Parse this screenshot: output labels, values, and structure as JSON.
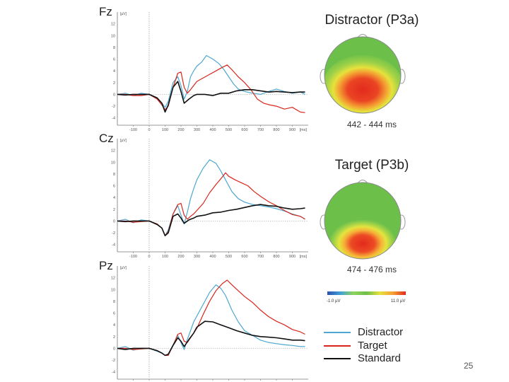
{
  "chart_data": [
    {
      "type": "line",
      "panel": "Fz",
      "ylabel": "[µV]",
      "xlabel": "[ms]",
      "xlim": [
        -200,
        1000
      ],
      "ylim": [
        -5,
        14
      ],
      "xticks": [
        -100,
        0,
        100,
        200,
        300,
        400,
        500,
        600,
        700,
        800,
        900
      ],
      "yticks": [
        -4,
        -2,
        0,
        2,
        4,
        6,
        8,
        10,
        12
      ],
      "series": [
        {
          "name": "Distractor",
          "x": [
            -200,
            -150,
            -100,
            -50,
            0,
            50,
            80,
            100,
            120,
            150,
            180,
            200,
            220,
            240,
            260,
            280,
            300,
            330,
            360,
            400,
            440,
            470,
            500,
            530,
            560,
            600,
            650,
            700,
            750,
            800,
            850,
            900,
            950,
            980
          ],
          "y": [
            0,
            0.2,
            -0.2,
            0.2,
            0,
            -0.6,
            -1.5,
            -2.2,
            -1.2,
            2.0,
            3.0,
            1.5,
            -0.8,
            0.5,
            3.0,
            4.0,
            4.8,
            5.5,
            6.6,
            6.0,
            5.2,
            4.2,
            3.0,
            1.8,
            0.9,
            0.5,
            0.2,
            0,
            0.5,
            0.9,
            0.5,
            0.2,
            0.4,
            0
          ]
        },
        {
          "name": "Target",
          "x": [
            -200,
            -150,
            -100,
            -50,
            0,
            50,
            80,
            100,
            120,
            150,
            180,
            200,
            220,
            240,
            260,
            280,
            300,
            340,
            380,
            420,
            460,
            490,
            520,
            560,
            600,
            640,
            680,
            720,
            760,
            800,
            850,
            900,
            950,
            980
          ],
          "y": [
            0,
            0,
            -0.2,
            -0.2,
            0,
            -0.8,
            -1.8,
            -2.6,
            -2.0,
            1.2,
            3.6,
            3.8,
            1.2,
            0.2,
            0.8,
            1.5,
            2.2,
            2.8,
            3.4,
            4.0,
            4.6,
            5.0,
            4.2,
            3.0,
            2.0,
            0.8,
            -0.8,
            -1.5,
            -1.8,
            -2.0,
            -2.5,
            -2.2,
            -3.0,
            -3.1
          ]
        },
        {
          "name": "Standard",
          "x": [
            -200,
            -150,
            -100,
            -50,
            0,
            50,
            80,
            100,
            120,
            150,
            180,
            200,
            220,
            250,
            280,
            300,
            350,
            400,
            450,
            500,
            550,
            600,
            650,
            700,
            750,
            800,
            850,
            900,
            950,
            980
          ],
          "y": [
            0,
            -0.1,
            0,
            0,
            0,
            -0.6,
            -1.5,
            -3.0,
            -1.8,
            1.2,
            2.2,
            0.5,
            -1.5,
            -0.8,
            -0.2,
            0,
            0,
            -0.2,
            0.2,
            0.2,
            0.6,
            0.8,
            0.8,
            0.6,
            0.4,
            0.5,
            0.4,
            0.3,
            0.4,
            0.4
          ]
        }
      ]
    },
    {
      "type": "line",
      "panel": "Cz",
      "ylabel": "[µV]",
      "xlabel": "[ms]",
      "xlim": [
        -200,
        1000
      ],
      "ylim": [
        -5,
        14
      ],
      "xticks": [
        -100,
        0,
        100,
        200,
        300,
        400,
        500,
        600,
        700,
        800,
        900
      ],
      "yticks": [
        -4,
        -2,
        0,
        2,
        4,
        6,
        8,
        10,
        12
      ],
      "series": [
        {
          "name": "Distractor",
          "x": [
            -200,
            -150,
            -100,
            -50,
            0,
            50,
            80,
            100,
            120,
            150,
            180,
            200,
            220,
            240,
            260,
            280,
            300,
            340,
            380,
            420,
            450,
            480,
            520,
            560,
            600,
            650,
            700,
            750,
            800,
            850,
            900,
            950,
            980
          ],
          "y": [
            0,
            0.3,
            -0.3,
            0.2,
            0,
            -0.5,
            -1.2,
            -2.5,
            -1.5,
            1.2,
            2.6,
            1.0,
            -0.5,
            1.5,
            3.8,
            5.5,
            7.0,
            9.0,
            10.4,
            9.8,
            8.5,
            7.0,
            5.0,
            3.8,
            3.2,
            2.8,
            2.6,
            2.4,
            2.1,
            1.7,
            1.2,
            0.8,
            0.3
          ]
        },
        {
          "name": "Target",
          "x": [
            -200,
            -150,
            -100,
            -50,
            0,
            50,
            80,
            100,
            120,
            150,
            180,
            200,
            220,
            240,
            260,
            280,
            300,
            340,
            380,
            420,
            460,
            480,
            500,
            540,
            580,
            620,
            660,
            700,
            750,
            800,
            850,
            900,
            950,
            980
          ],
          "y": [
            0,
            0,
            -0.2,
            -0.1,
            0,
            -0.5,
            -1.2,
            -2.5,
            -1.8,
            1.2,
            2.8,
            3.0,
            1.0,
            0.3,
            0.8,
            1.2,
            1.8,
            3.0,
            4.8,
            6.2,
            7.5,
            8.2,
            7.6,
            7.0,
            6.5,
            6.0,
            5.0,
            4.2,
            3.3,
            2.6,
            1.8,
            1.1,
            0.8,
            0.3
          ]
        },
        {
          "name": "Standard",
          "x": [
            -200,
            -150,
            -100,
            -50,
            0,
            50,
            80,
            100,
            120,
            150,
            180,
            200,
            220,
            250,
            280,
            300,
            350,
            400,
            450,
            500,
            550,
            600,
            650,
            700,
            750,
            800,
            850,
            900,
            950,
            980
          ],
          "y": [
            0,
            -0.1,
            0,
            0,
            0,
            -0.6,
            -1.2,
            -2.5,
            -2.0,
            0.8,
            1.2,
            0.5,
            -0.4,
            0.2,
            0.5,
            0.8,
            1.0,
            1.4,
            1.5,
            1.8,
            2.0,
            2.3,
            2.6,
            2.8,
            2.6,
            2.5,
            2.2,
            2.0,
            2.1,
            2.2
          ]
        }
      ]
    },
    {
      "type": "line",
      "panel": "Pz",
      "ylabel": "[µV]",
      "xlabel": "[ms]",
      "xlim": [
        -200,
        1000
      ],
      "ylim": [
        -5,
        14
      ],
      "xticks": [
        -100,
        0,
        100,
        200,
        300,
        400,
        500,
        600,
        700,
        800,
        900
      ],
      "yticks": [
        -4,
        -2,
        0,
        2,
        4,
        6,
        8,
        10,
        12
      ],
      "series": [
        {
          "name": "Distractor",
          "x": [
            -200,
            -150,
            -100,
            -50,
            0,
            50,
            80,
            100,
            120,
            150,
            180,
            200,
            220,
            240,
            260,
            280,
            300,
            340,
            380,
            420,
            450,
            480,
            520,
            560,
            600,
            650,
            700,
            750,
            800,
            850,
            900,
            950,
            980
          ],
          "y": [
            0,
            0.3,
            -0.3,
            0,
            0,
            -0.5,
            -0.8,
            -1.2,
            -1.0,
            0.6,
            2.2,
            1.0,
            -0.2,
            1.5,
            3.0,
            4.5,
            5.5,
            7.5,
            9.5,
            10.8,
            10.2,
            9.0,
            6.5,
            4.5,
            3.0,
            2.2,
            1.4,
            1.0,
            0.8,
            0.6,
            0.5,
            0.3,
            0.3
          ]
        },
        {
          "name": "Target",
          "x": [
            -200,
            -150,
            -100,
            -50,
            0,
            50,
            80,
            100,
            120,
            150,
            180,
            200,
            220,
            240,
            260,
            280,
            300,
            340,
            380,
            420,
            460,
            490,
            520,
            560,
            600,
            650,
            700,
            750,
            800,
            850,
            900,
            950,
            980
          ],
          "y": [
            0,
            0,
            -0.2,
            -0.1,
            0,
            -0.4,
            -0.8,
            -1.2,
            -1.2,
            0.5,
            2.4,
            2.6,
            1.2,
            1.0,
            1.8,
            2.6,
            3.4,
            5.8,
            8.0,
            9.8,
            11.0,
            11.6,
            10.8,
            9.8,
            8.8,
            7.8,
            6.5,
            5.4,
            4.6,
            4.0,
            3.2,
            2.8,
            2.4
          ]
        },
        {
          "name": "Standard",
          "x": [
            -200,
            -150,
            -100,
            -50,
            0,
            50,
            80,
            100,
            120,
            150,
            180,
            200,
            220,
            250,
            280,
            300,
            350,
            400,
            450,
            500,
            550,
            600,
            650,
            700,
            750,
            800,
            850,
            900,
            950,
            980
          ],
          "y": [
            0,
            -0.2,
            0,
            0,
            0,
            -0.4,
            -0.8,
            -1.2,
            -1.0,
            0.5,
            1.8,
            1.2,
            0.3,
            1.5,
            2.6,
            3.6,
            4.6,
            4.5,
            4.0,
            3.5,
            3.0,
            2.6,
            2.2,
            2.0,
            1.9,
            1.8,
            1.6,
            1.4,
            1.4,
            1.3
          ]
        }
      ]
    }
  ],
  "colors": {
    "Distractor": "#4ea7d1",
    "Target": "#d9261c",
    "Standard": "#111111"
  },
  "topomaps": [
    {
      "title": "Distractor (P3a)",
      "time_window": "442 - 444 ms"
    },
    {
      "title": "Target (P3b)",
      "time_window": "474 - 476 ms"
    }
  ],
  "colorbar": {
    "min_label": "-1.0 µV",
    "max_label": "11.0 µV"
  },
  "legend": {
    "items": [
      {
        "label": "Distractor",
        "color": "#4ea7d1"
      },
      {
        "label": "Target",
        "color": "#d9261c"
      },
      {
        "label": "Standard",
        "color": "#111111"
      }
    ]
  },
  "page_number": "25"
}
